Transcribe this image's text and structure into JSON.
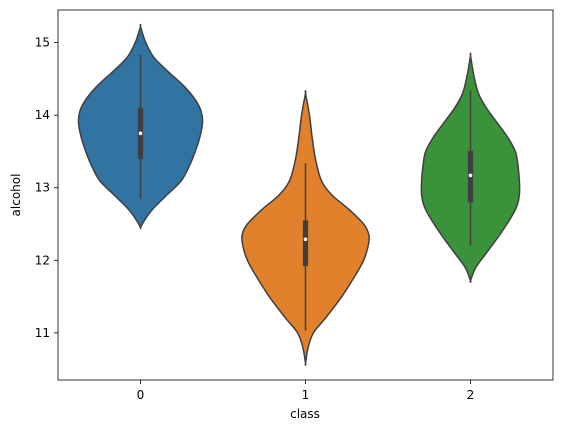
{
  "chart_data": {
    "type": "violin",
    "xlabel": "class",
    "ylabel": "alcohol",
    "ylim": [
      10.35,
      15.45
    ],
    "yticks": [
      11,
      12,
      13,
      14,
      15
    ],
    "categories": [
      "0",
      "1",
      "2"
    ],
    "grid": false,
    "legend": "none",
    "violins": [
      {
        "category": "0",
        "color": "#3274a1",
        "min": 12.85,
        "q1": 13.4,
        "median": 13.75,
        "q3": 14.1,
        "max": 14.83,
        "kde_min": 12.45,
        "kde_max": 15.22,
        "density": [
          [
            12.45,
            0.0
          ],
          [
            12.55,
            0.06
          ],
          [
            12.7,
            0.18
          ],
          [
            12.9,
            0.4
          ],
          [
            13.1,
            0.62
          ],
          [
            13.3,
            0.74
          ],
          [
            13.5,
            0.83
          ],
          [
            13.7,
            0.9
          ],
          [
            13.9,
            0.94
          ],
          [
            14.05,
            0.92
          ],
          [
            14.2,
            0.84
          ],
          [
            14.4,
            0.66
          ],
          [
            14.6,
            0.42
          ],
          [
            14.8,
            0.2
          ],
          [
            15.0,
            0.08
          ],
          [
            15.22,
            0.0
          ]
        ]
      },
      {
        "category": "1",
        "color": "#e1812c",
        "min": 11.03,
        "q1": 11.92,
        "median": 12.29,
        "q3": 12.55,
        "max": 13.34,
        "kde_min": 10.58,
        "kde_max": 14.3,
        "density": [
          [
            10.58,
            0.0
          ],
          [
            10.8,
            0.04
          ],
          [
            11.0,
            0.12
          ],
          [
            11.2,
            0.3
          ],
          [
            11.5,
            0.55
          ],
          [
            11.8,
            0.76
          ],
          [
            12.0,
            0.88
          ],
          [
            12.2,
            0.95
          ],
          [
            12.35,
            0.96
          ],
          [
            12.5,
            0.88
          ],
          [
            12.7,
            0.66
          ],
          [
            12.9,
            0.4
          ],
          [
            13.1,
            0.24
          ],
          [
            13.4,
            0.15
          ],
          [
            13.7,
            0.1
          ],
          [
            14.0,
            0.06
          ],
          [
            14.3,
            0.0
          ]
        ]
      },
      {
        "category": "2",
        "color": "#3a923a",
        "min": 12.2,
        "q1": 12.8,
        "median": 13.17,
        "q3": 13.51,
        "max": 14.34,
        "kde_min": 11.72,
        "kde_max": 14.82,
        "density": [
          [
            11.72,
            0.0
          ],
          [
            11.9,
            0.08
          ],
          [
            12.1,
            0.24
          ],
          [
            12.4,
            0.48
          ],
          [
            12.7,
            0.68
          ],
          [
            12.9,
            0.74
          ],
          [
            13.1,
            0.74
          ],
          [
            13.3,
            0.72
          ],
          [
            13.5,
            0.68
          ],
          [
            13.7,
            0.56
          ],
          [
            13.9,
            0.4
          ],
          [
            14.1,
            0.24
          ],
          [
            14.3,
            0.12
          ],
          [
            14.55,
            0.05
          ],
          [
            14.82,
            0.0
          ]
        ]
      }
    ]
  }
}
